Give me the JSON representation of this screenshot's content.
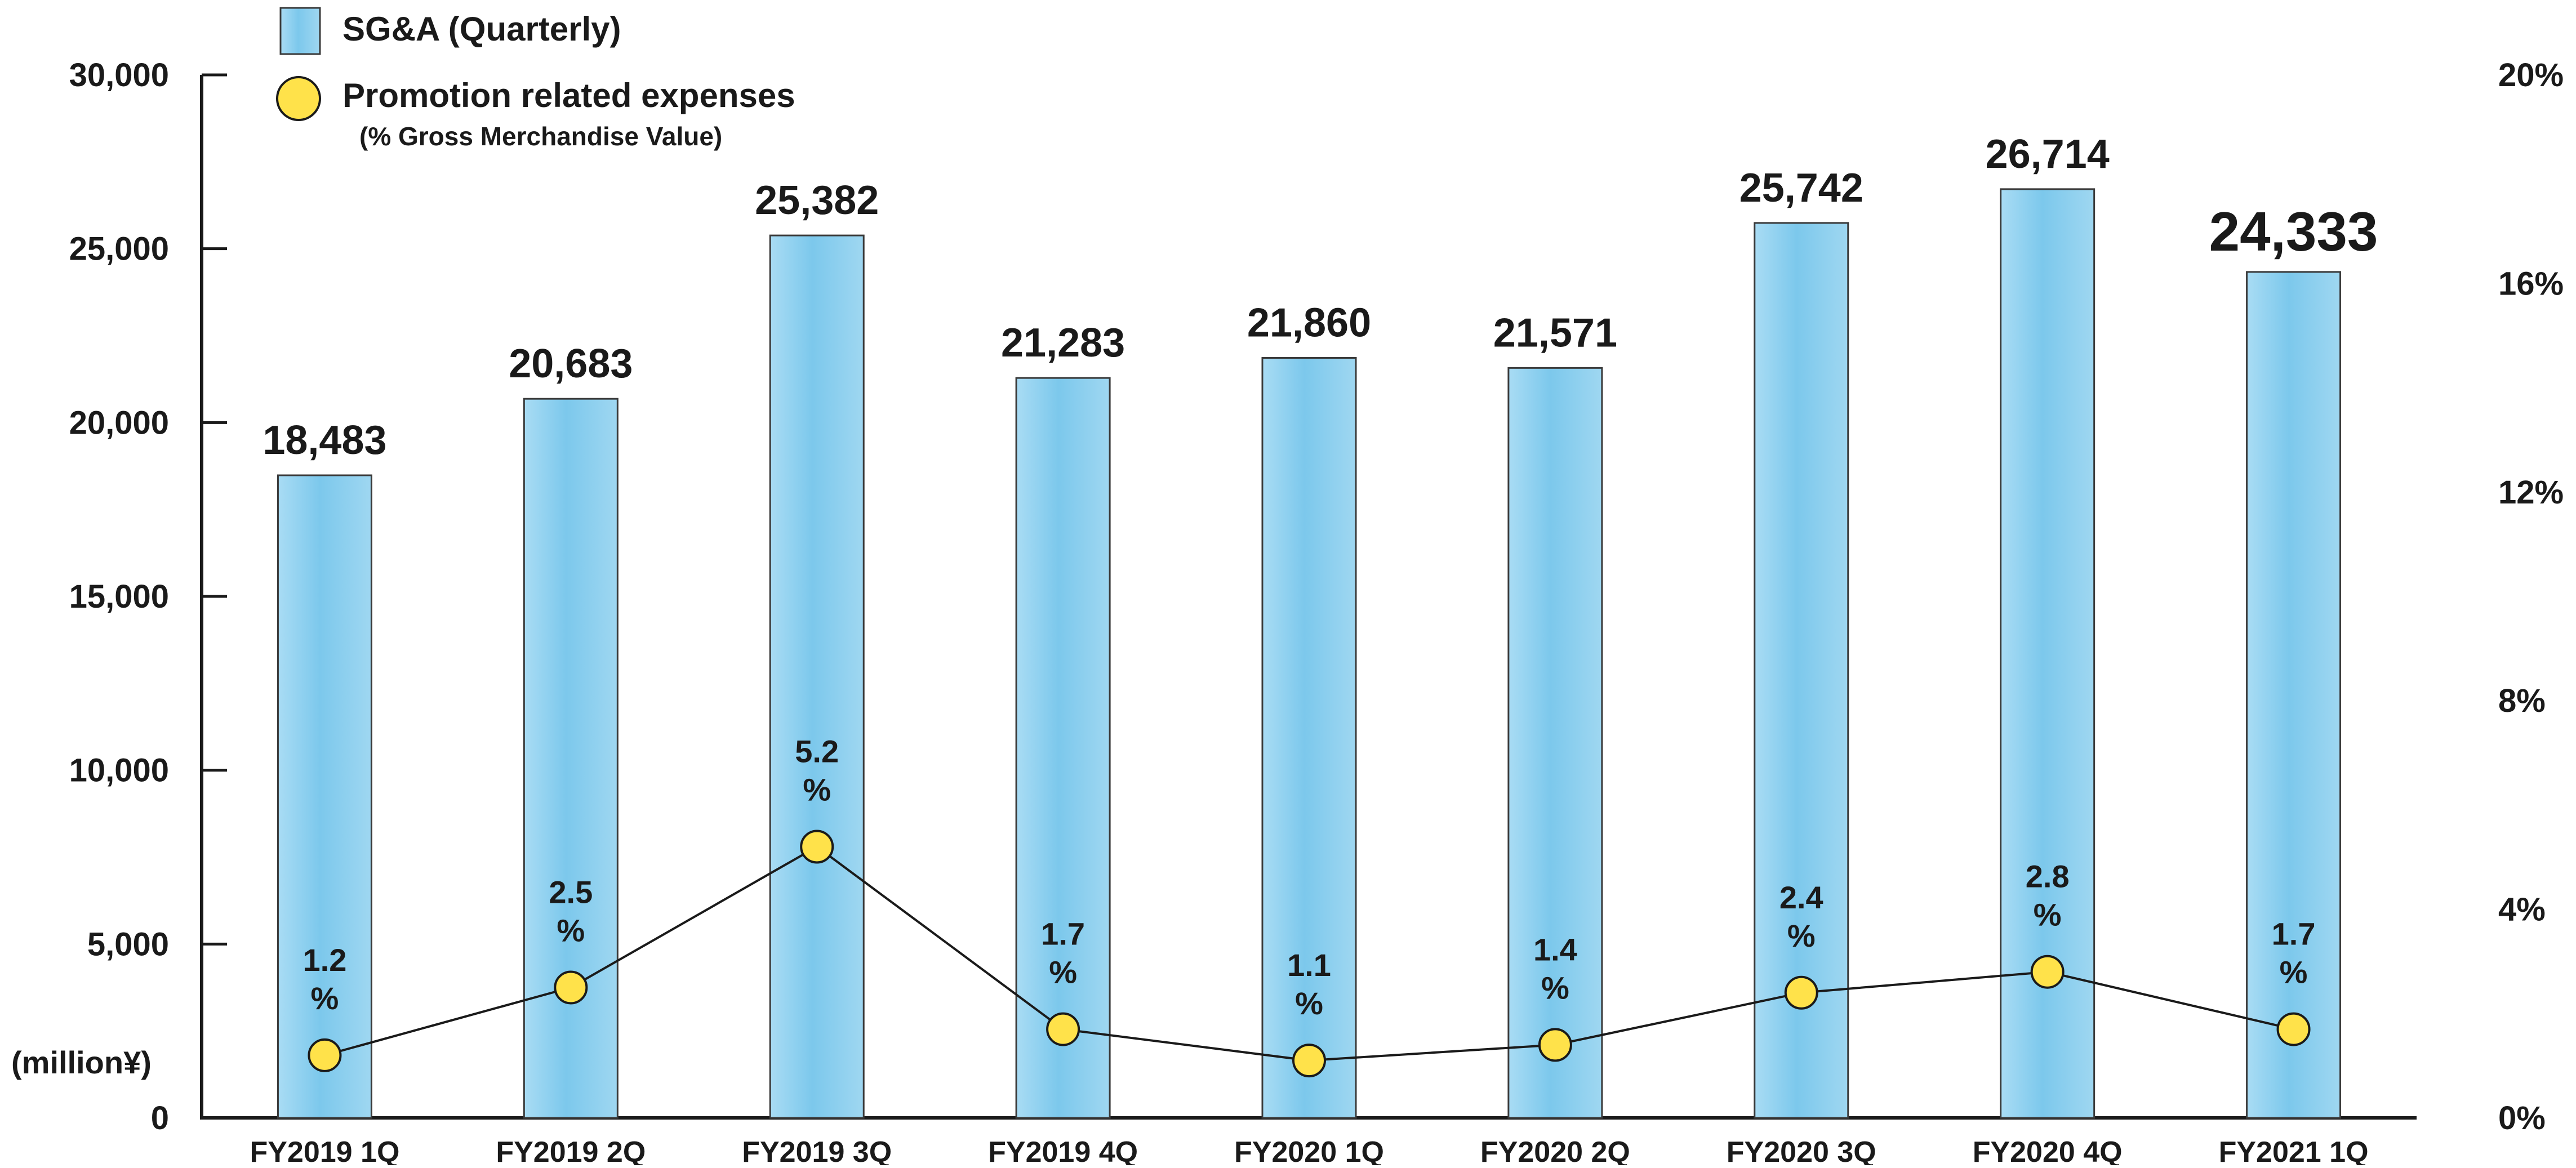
{
  "chart_data": {
    "type": "bar",
    "categories": [
      "FY2019 1Q",
      "FY2019 2Q",
      "FY2019 3Q",
      "FY2019 4Q",
      "FY2020 1Q",
      "FY2020 2Q",
      "FY2020 3Q",
      "FY2020 4Q",
      "FY2021 1Q"
    ],
    "series": [
      {
        "name": "SG&A (Quarterly)",
        "type": "bar",
        "axis": "left",
        "values": [
          18483,
          20683,
          25382,
          21283,
          21860,
          21571,
          25742,
          26714,
          24333
        ],
        "labels": [
          "18,483",
          "20,683",
          "25,382",
          "21,283",
          "21,860",
          "21,571",
          "25,742",
          "26,714",
          "24,333"
        ],
        "color": "#7cc8ec"
      },
      {
        "name": "Promotion related expenses",
        "name_sub": "(% Gross Merchandise Value)",
        "type": "line",
        "axis": "right",
        "values": [
          1.2,
          2.5,
          5.2,
          1.7,
          1.1,
          1.4,
          2.4,
          2.8,
          1.7
        ],
        "labels": [
          "1.2",
          "2.5",
          "5.2",
          "1.7",
          "1.1",
          "1.4",
          "2.4",
          "2.8",
          "1.7"
        ],
        "color": "#ffe24a"
      }
    ],
    "y_left": {
      "unit_label": "(million¥)",
      "ticks": [
        0,
        5000,
        10000,
        15000,
        20000,
        25000,
        30000
      ],
      "tick_labels": [
        "0",
        "5,000",
        "10,000",
        "15,000",
        "20,000",
        "25,000",
        "30,000"
      ],
      "ylim": [
        0,
        30000
      ]
    },
    "y_right": {
      "ticks": [
        0,
        4,
        8,
        12,
        16,
        20
      ],
      "tick_labels": [
        "0%",
        "4%",
        "8%",
        "12%",
        "16%",
        "20%"
      ],
      "ylim": [
        0,
        20
      ]
    },
    "percent_suffix": "%",
    "legend_position": "top-left",
    "grid": false
  }
}
